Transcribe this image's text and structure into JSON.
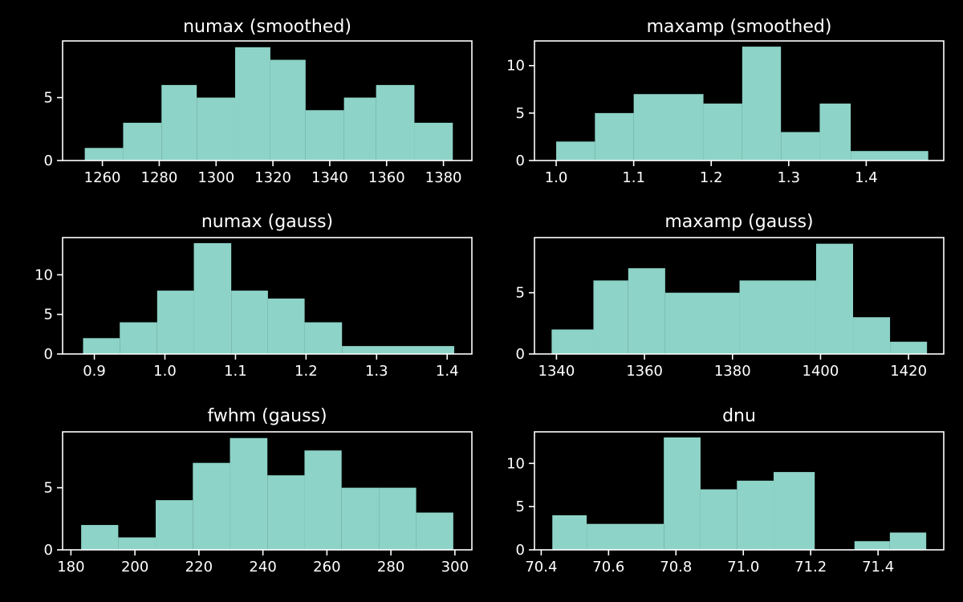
{
  "style": {
    "background": "#000000",
    "bar_color": "#8dd3c7",
    "axis_color": "#ffffff"
  },
  "chart_data": [
    {
      "type": "bar",
      "title": "numax (smoothed)",
      "bin_edges": [
        1253.8,
        1267.3,
        1280.8,
        1293.2,
        1306.7,
        1319.1,
        1331.5,
        1345.0,
        1356.3,
        1369.8,
        1383.3
      ],
      "values": [
        1,
        3,
        6,
        5,
        9,
        8,
        4,
        5,
        6,
        3
      ],
      "xlim": [
        1246,
        1390
      ],
      "ylim": [
        0,
        9.5
      ],
      "xticks": [
        1260,
        1280,
        1300,
        1320,
        1340,
        1360,
        1380
      ],
      "xtick_labels": [
        "1260",
        "1280",
        "1300",
        "1320",
        "1340",
        "1360",
        "1380"
      ],
      "yticks": [
        0,
        5
      ],
      "ytick_labels": [
        "0",
        "5"
      ]
    },
    {
      "type": "bar",
      "title": "maxamp (smoothed)",
      "bin_edges": [
        1.0,
        1.05,
        1.1,
        1.19,
        1.24,
        1.29,
        1.34,
        1.38,
        1.48
      ],
      "values": [
        2,
        5,
        7,
        6,
        12,
        3,
        6,
        1
      ],
      "xlim": [
        0.972,
        1.5
      ],
      "ylim": [
        0,
        12.6
      ],
      "xticks": [
        1.0,
        1.1,
        1.2,
        1.3,
        1.4
      ],
      "xtick_labels": [
        "1.0",
        "1.1",
        "1.2",
        "1.3",
        "1.4"
      ],
      "yticks": [
        0,
        5,
        10
      ],
      "ytick_labels": [
        "0",
        "5",
        "10"
      ]
    },
    {
      "type": "bar",
      "title": "numax (gauss)",
      "bin_edges": [
        0.884,
        0.936,
        0.989,
        1.041,
        1.094,
        1.146,
        1.198,
        1.251,
        1.41
      ],
      "values": [
        2,
        4,
        8,
        14,
        8,
        7,
        4,
        1
      ],
      "xlim": [
        0.855,
        1.435
      ],
      "ylim": [
        0,
        14.7
      ],
      "xticks": [
        0.9,
        1.0,
        1.1,
        1.2,
        1.3,
        1.4
      ],
      "xtick_labels": [
        "0.9",
        "1.0",
        "1.1",
        "1.2",
        "1.3",
        "1.4"
      ],
      "yticks": [
        0,
        5,
        10
      ],
      "ytick_labels": [
        "0",
        "5",
        "10"
      ]
    },
    {
      "type": "bar",
      "title": "maxamp (gauss)",
      "bin_edges": [
        1338.9,
        1348.4,
        1356.3,
        1364.7,
        1381.6,
        1399.0,
        1407.4,
        1415.8,
        1424.2
      ],
      "values": [
        2,
        6,
        7,
        5,
        6,
        9,
        3,
        1
      ],
      "xlim": [
        1335,
        1428
      ],
      "ylim": [
        0,
        9.5
      ],
      "xticks": [
        1340,
        1360,
        1380,
        1400,
        1420
      ],
      "xtick_labels": [
        "1340",
        "1360",
        "1380",
        "1400",
        "1420"
      ],
      "yticks": [
        0,
        5
      ],
      "ytick_labels": [
        "0",
        "5"
      ]
    },
    {
      "type": "bar",
      "title": "fwhm (gauss)",
      "bin_edges": [
        183.2,
        194.8,
        206.5,
        218.1,
        229.7,
        241.4,
        253.0,
        264.6,
        276.3,
        287.9,
        299.5
      ],
      "values": [
        2,
        1,
        4,
        7,
        9,
        6,
        8,
        5,
        5,
        3
      ],
      "xlim": [
        177.4,
        305.3
      ],
      "ylim": [
        0,
        9.5
      ],
      "xticks": [
        180,
        200,
        220,
        240,
        260,
        280,
        300
      ],
      "xtick_labels": [
        "180",
        "200",
        "220",
        "240",
        "260",
        "280",
        "300"
      ],
      "yticks": [
        0,
        5
      ],
      "ytick_labels": [
        "0",
        "5"
      ]
    },
    {
      "type": "bar",
      "title": "dnu",
      "bin_edges": [
        70.433,
        70.535,
        70.764,
        70.873,
        70.981,
        71.09,
        71.212,
        71.33,
        71.435,
        71.543
      ],
      "values": [
        4,
        3,
        13,
        7,
        8,
        9,
        0,
        1,
        2
      ],
      "xlim": [
        70.38,
        71.595
      ],
      "ylim": [
        0,
        13.65
      ],
      "xticks": [
        70.4,
        70.6,
        70.8,
        71.0,
        71.2,
        71.4
      ],
      "xtick_labels": [
        "70.4",
        "70.6",
        "70.8",
        "71.0",
        "71.2",
        "71.4"
      ],
      "yticks": [
        0,
        5,
        10
      ],
      "ytick_labels": [
        "0",
        "5",
        "10"
      ]
    }
  ]
}
